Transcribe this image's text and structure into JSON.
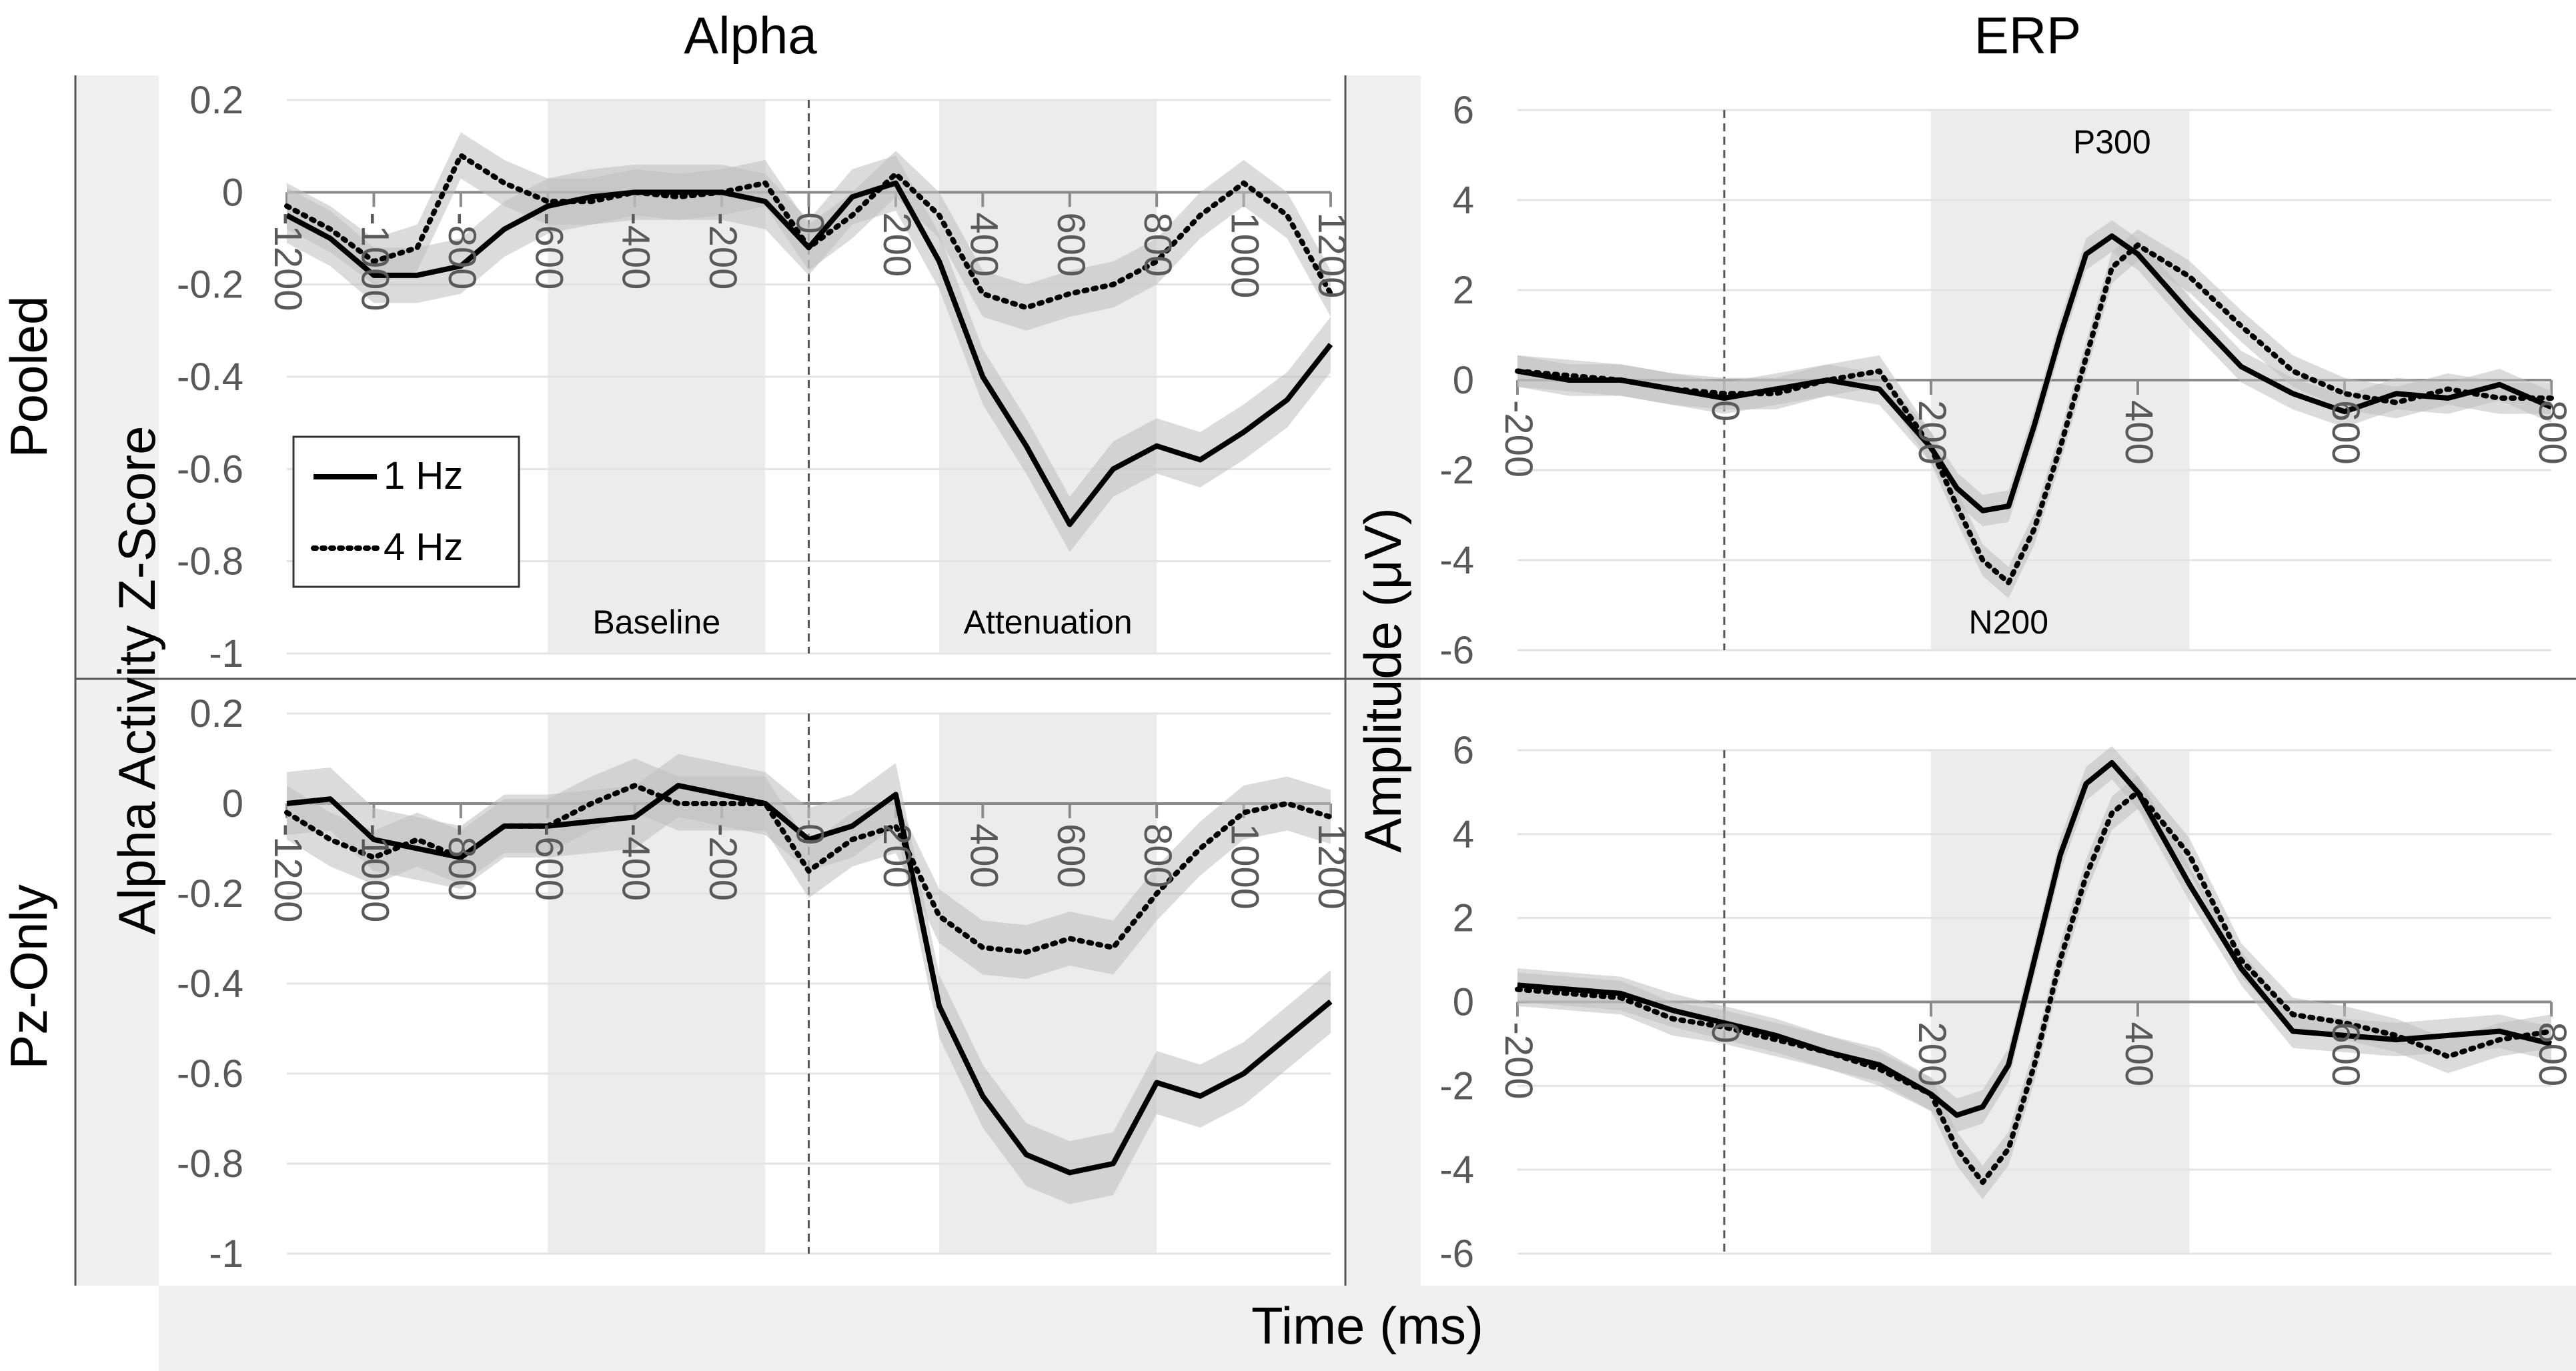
{
  "header": {
    "left_title": "Alpha",
    "right_title": "ERP"
  },
  "rows": {
    "top": "Pooled",
    "bottom": "Pz-Only"
  },
  "axes": {
    "alpha_ylabel": "Alpha Activity Z-Score",
    "erp_ylabel": "Amplitude (μV)",
    "xlabel": "Time (ms)"
  },
  "colors": {
    "series_1hz": "#000000",
    "series_4hz": "#000000",
    "error_band": "#bdbdbd",
    "shade": "#ececec",
    "panel_bg": "#f0f0f0"
  },
  "chart_data": [
    {
      "id": "alpha-pooled",
      "type": "line",
      "xlim": [
        -1200,
        1200
      ],
      "ylim": [
        -1,
        0.2
      ],
      "xticks": [
        -1200,
        -1000,
        -800,
        -600,
        -400,
        -200,
        0,
        200,
        400,
        600,
        800,
        1000,
        1200
      ],
      "yticks": [
        0.2,
        0,
        -0.2,
        -0.4,
        -0.6,
        -0.8,
        -1
      ],
      "ytick_labels": [
        "0.2",
        "0",
        "-0.2",
        "-0.4",
        "-0.6",
        "-0.8",
        "-1"
      ],
      "grid": true,
      "event_line_x": 0,
      "shaded_regions": [
        {
          "label": "Baseline",
          "x": [
            -600,
            -100
          ]
        },
        {
          "label": "Attenuation",
          "x": [
            300,
            800
          ]
        }
      ],
      "legend": {
        "placement": "left",
        "entries": [
          "1 Hz",
          "4 Hz"
        ]
      },
      "series": [
        {
          "name": "1 Hz",
          "style": "solid",
          "x": [
            -1200,
            -1100,
            -1000,
            -900,
            -800,
            -700,
            -600,
            -500,
            -400,
            -300,
            -200,
            -100,
            0,
            100,
            200,
            300,
            400,
            500,
            600,
            700,
            800,
            900,
            1000,
            1100,
            1200
          ],
          "y": [
            -0.05,
            -0.1,
            -0.18,
            -0.18,
            -0.16,
            -0.08,
            -0.03,
            -0.01,
            0.0,
            0.0,
            0.0,
            -0.02,
            -0.12,
            -0.01,
            0.02,
            -0.15,
            -0.4,
            -0.55,
            -0.72,
            -0.6,
            -0.55,
            -0.58,
            -0.52,
            -0.45,
            -0.33
          ],
          "error": 0.06
        },
        {
          "name": "4 Hz",
          "style": "dotted",
          "x": [
            -1200,
            -1100,
            -1000,
            -900,
            -800,
            -700,
            -600,
            -500,
            -400,
            -300,
            -200,
            -100,
            0,
            100,
            200,
            300,
            400,
            500,
            600,
            700,
            800,
            900,
            1000,
            1100,
            1200
          ],
          "y": [
            -0.03,
            -0.08,
            -0.15,
            -0.12,
            0.08,
            0.02,
            -0.02,
            -0.02,
            0.0,
            -0.01,
            0.0,
            0.02,
            -0.12,
            -0.05,
            0.04,
            -0.05,
            -0.22,
            -0.25,
            -0.22,
            -0.2,
            -0.15,
            -0.05,
            0.02,
            -0.05,
            -0.22
          ],
          "error": 0.05
        }
      ]
    },
    {
      "id": "alpha-pz",
      "type": "line",
      "xlim": [
        -1200,
        1200
      ],
      "ylim": [
        -1,
        0.2
      ],
      "xticks": [
        -1200,
        -1000,
        -800,
        -600,
        -400,
        -200,
        0,
        200,
        400,
        600,
        800,
        1000,
        1200
      ],
      "yticks": [
        0.2,
        0,
        -0.2,
        -0.4,
        -0.6,
        -0.8,
        -1
      ],
      "ytick_labels": [
        "0.2",
        "0",
        "-0.2",
        "-0.4",
        "-0.6",
        "-0.8",
        "-1"
      ],
      "grid": true,
      "event_line_x": 0,
      "shaded_regions": [
        {
          "label": "",
          "x": [
            -600,
            -100
          ]
        },
        {
          "label": "",
          "x": [
            300,
            800
          ]
        }
      ],
      "series": [
        {
          "name": "1 Hz",
          "style": "solid",
          "x": [
            -1200,
            -1100,
            -1000,
            -900,
            -800,
            -700,
            -600,
            -500,
            -400,
            -300,
            -200,
            -100,
            0,
            100,
            200,
            300,
            400,
            500,
            600,
            700,
            800,
            900,
            1000,
            1100,
            1200
          ],
          "y": [
            0.0,
            0.01,
            -0.08,
            -0.1,
            -0.12,
            -0.05,
            -0.05,
            -0.04,
            -0.03,
            0.04,
            0.02,
            0.0,
            -0.08,
            -0.05,
            0.02,
            -0.45,
            -0.65,
            -0.78,
            -0.82,
            -0.8,
            -0.62,
            -0.65,
            -0.6,
            -0.52,
            -0.44
          ],
          "error": 0.07
        },
        {
          "name": "4 Hz",
          "style": "dotted",
          "x": [
            -1200,
            -1100,
            -1000,
            -900,
            -800,
            -700,
            -600,
            -500,
            -400,
            -300,
            -200,
            -100,
            0,
            100,
            200,
            300,
            400,
            500,
            600,
            700,
            800,
            900,
            1000,
            1100,
            1200
          ],
          "y": [
            -0.02,
            -0.08,
            -0.12,
            -0.08,
            -0.12,
            -0.05,
            -0.05,
            0.0,
            0.04,
            0.0,
            0.0,
            0.0,
            -0.15,
            -0.08,
            -0.05,
            -0.25,
            -0.32,
            -0.33,
            -0.3,
            -0.32,
            -0.2,
            -0.1,
            -0.02,
            0.0,
            -0.03
          ],
          "error": 0.06
        }
      ]
    },
    {
      "id": "erp-pooled",
      "type": "line",
      "xlim": [
        -200,
        800
      ],
      "ylim": [
        -6,
        6
      ],
      "xticks": [
        -200,
        0,
        200,
        400,
        600,
        800
      ],
      "yticks": [
        6,
        4,
        2,
        0,
        -2,
        -4,
        -6
      ],
      "ytick_labels": [
        "6",
        "4",
        "2",
        "0",
        "-2",
        "-4",
        "-6"
      ],
      "grid": true,
      "event_line_x": 0,
      "shaded_regions": [
        {
          "label": "N200",
          "x": [
            200,
            350
          ]
        },
        {
          "label": "P300",
          "x": [
            300,
            450
          ]
        }
      ],
      "series": [
        {
          "name": "1 Hz",
          "style": "solid",
          "x": [
            -200,
            -150,
            -100,
            -50,
            0,
            50,
            100,
            150,
            200,
            225,
            250,
            275,
            300,
            325,
            350,
            375,
            400,
            450,
            500,
            550,
            600,
            650,
            700,
            750,
            800
          ],
          "y": [
            0.2,
            0.0,
            0.0,
            -0.2,
            -0.4,
            -0.2,
            0.0,
            -0.2,
            -1.5,
            -2.4,
            -2.9,
            -2.8,
            -1.0,
            1.0,
            2.8,
            3.2,
            2.8,
            1.5,
            0.3,
            -0.3,
            -0.7,
            -0.3,
            -0.4,
            -0.1,
            -0.6
          ],
          "error": 0.35
        },
        {
          "name": "4 Hz",
          "style": "dotted",
          "x": [
            -200,
            -150,
            -100,
            -50,
            0,
            50,
            100,
            150,
            200,
            225,
            250,
            275,
            300,
            325,
            350,
            375,
            400,
            450,
            500,
            550,
            600,
            650,
            700,
            750,
            800
          ],
          "y": [
            0.2,
            0.1,
            0.0,
            -0.2,
            -0.3,
            -0.3,
            0.0,
            0.2,
            -1.5,
            -2.8,
            -4.0,
            -4.5,
            -3.3,
            -1.5,
            0.5,
            2.5,
            3.0,
            2.3,
            1.2,
            0.2,
            -0.3,
            -0.5,
            -0.2,
            -0.4,
            -0.4
          ],
          "error": 0.35
        }
      ]
    },
    {
      "id": "erp-pz",
      "type": "line",
      "xlim": [
        -200,
        800
      ],
      "ylim": [
        -6,
        6
      ],
      "xticks": [
        -200,
        0,
        200,
        400,
        600,
        800
      ],
      "yticks": [
        6,
        4,
        2,
        0,
        -2,
        -4,
        -6
      ],
      "ytick_labels": [
        "6",
        "4",
        "2",
        "0",
        "-2",
        "-4",
        "-6"
      ],
      "grid": true,
      "event_line_x": 0,
      "shaded_regions": [
        {
          "label": "",
          "x": [
            200,
            350
          ]
        },
        {
          "label": "",
          "x": [
            300,
            450
          ]
        }
      ],
      "series": [
        {
          "name": "1 Hz",
          "style": "solid",
          "x": [
            -200,
            -150,
            -100,
            -50,
            0,
            50,
            100,
            150,
            200,
            225,
            250,
            275,
            300,
            325,
            350,
            375,
            400,
            450,
            500,
            550,
            600,
            650,
            700,
            750,
            800
          ],
          "y": [
            0.4,
            0.3,
            0.2,
            -0.2,
            -0.5,
            -0.8,
            -1.2,
            -1.5,
            -2.2,
            -2.7,
            -2.5,
            -1.5,
            1.0,
            3.5,
            5.2,
            5.7,
            5.0,
            2.8,
            0.8,
            -0.7,
            -0.8,
            -0.9,
            -0.8,
            -0.7,
            -1.0
          ],
          "error": 0.4
        },
        {
          "name": "4 Hz",
          "style": "dotted",
          "x": [
            -200,
            -150,
            -100,
            -50,
            0,
            50,
            100,
            150,
            200,
            225,
            250,
            275,
            300,
            325,
            350,
            375,
            400,
            450,
            500,
            550,
            600,
            650,
            700,
            750,
            800
          ],
          "y": [
            0.3,
            0.2,
            0.1,
            -0.4,
            -0.6,
            -0.9,
            -1.2,
            -1.6,
            -2.2,
            -3.5,
            -4.3,
            -3.5,
            -1.5,
            1.0,
            3.0,
            4.5,
            5.0,
            3.5,
            1.0,
            -0.3,
            -0.5,
            -0.8,
            -1.3,
            -0.9,
            -0.7
          ],
          "error": 0.4
        }
      ]
    }
  ]
}
